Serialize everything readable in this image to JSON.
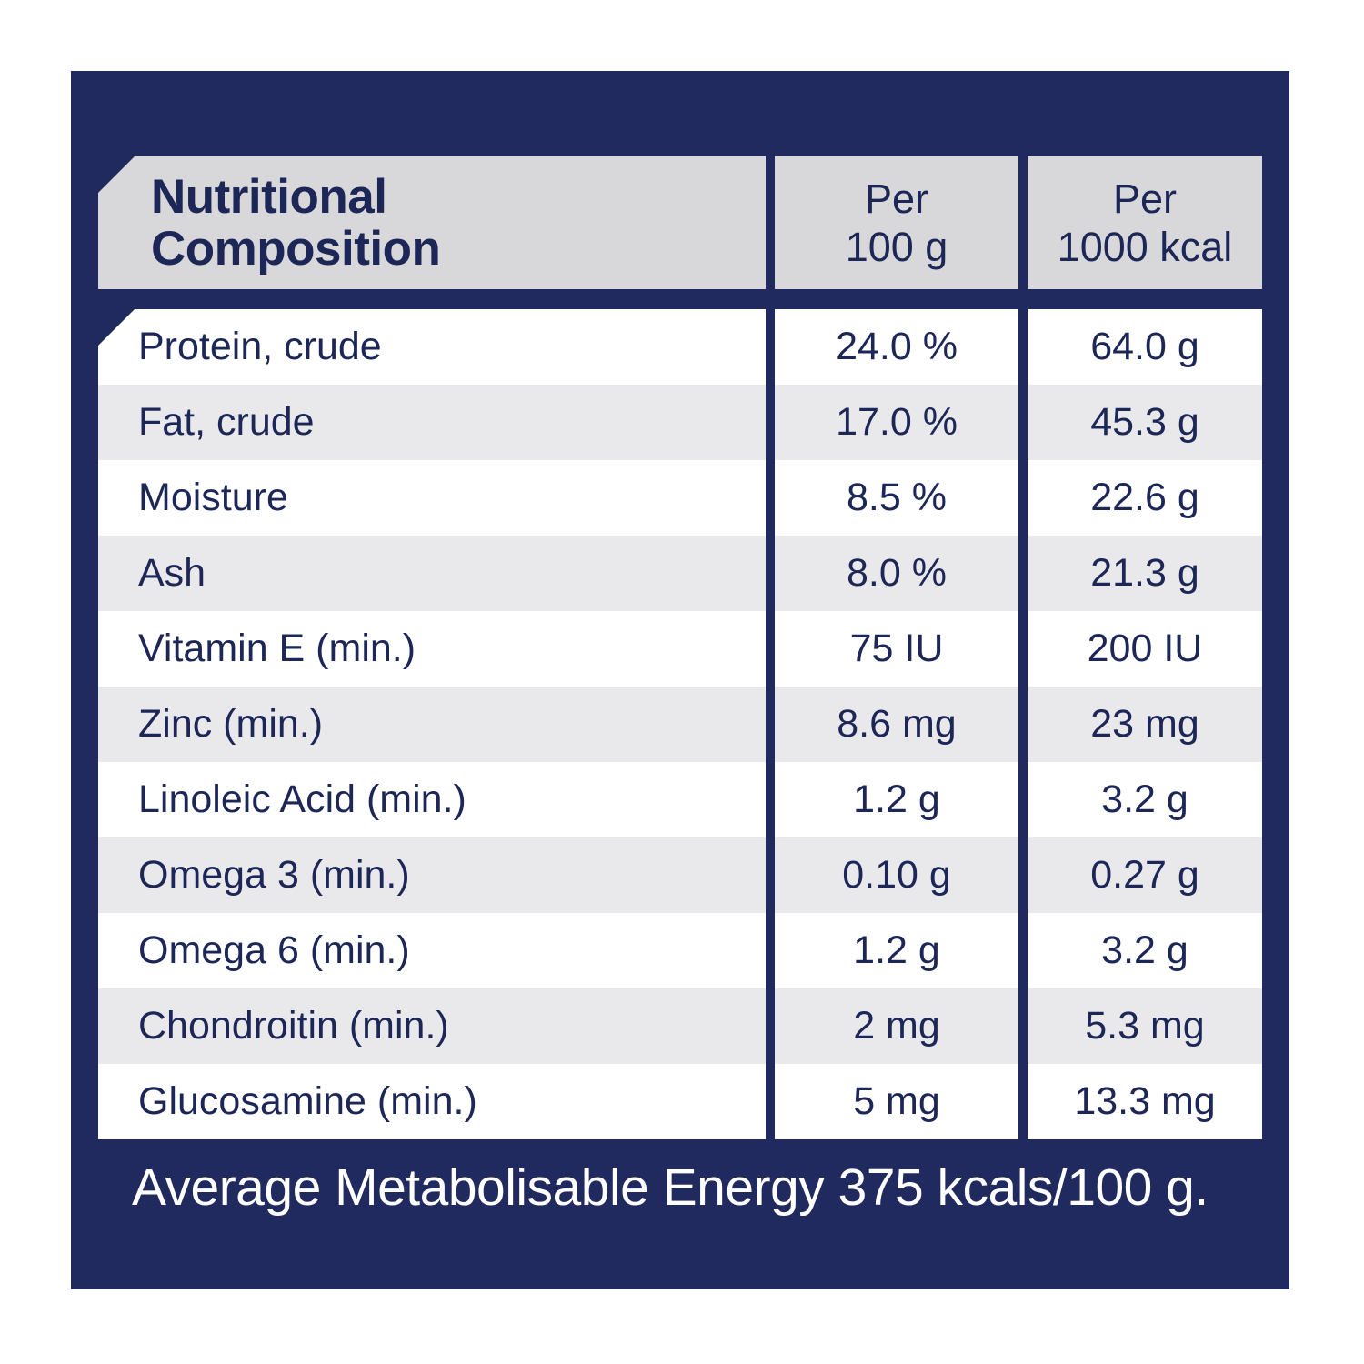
{
  "colors": {
    "panel_navy": "#212a5e",
    "header_gray": "#d8d8da",
    "row_shade_gray": "#e9e9ec",
    "row_white": "#ffffff",
    "text_navy": "#1d2757",
    "footer_text": "#ffffff"
  },
  "table": {
    "header": {
      "title_lines": [
        "Nutritional",
        "Composition"
      ],
      "col2_lines": [
        "Per",
        "100 g"
      ],
      "col3_lines": [
        "Per",
        "1000 kcal"
      ]
    },
    "rows": [
      {
        "name": "Protein, crude",
        "per100": "24.0 %",
        "per1000": "64.0 g"
      },
      {
        "name": "Fat, crude",
        "per100": "17.0 %",
        "per1000": "45.3 g"
      },
      {
        "name": "Moisture",
        "per100": "8.5 %",
        "per1000": "22.6 g"
      },
      {
        "name": "Ash",
        "per100": "8.0 %",
        "per1000": "21.3 g"
      },
      {
        "name": "Vitamin E (min.)",
        "per100": "75 IU",
        "per1000": "200 IU"
      },
      {
        "name": "Zinc (min.)",
        "per100": "8.6 mg",
        "per1000": "23 mg"
      },
      {
        "name": "Linoleic Acid (min.)",
        "per100": "1.2 g",
        "per1000": "3.2 g"
      },
      {
        "name": "Omega 3 (min.)",
        "per100": "0.10 g",
        "per1000": "0.27 g"
      },
      {
        "name": "Omega 6 (min.)",
        "per100": "1.2 g",
        "per1000": "3.2 g"
      },
      {
        "name": "Chondroitin (min.)",
        "per100": "2 mg",
        "per1000": "5.3 mg"
      },
      {
        "name": "Glucosamine (min.)",
        "per100": "5 mg",
        "per1000": "13.3 mg"
      }
    ],
    "footer": "Average Metabolisable Energy 375 kcals/100 g."
  }
}
